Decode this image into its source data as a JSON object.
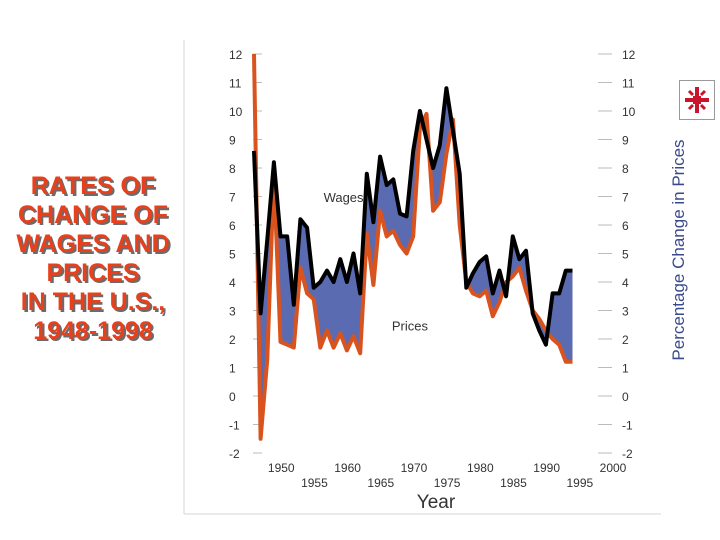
{
  "slide": {
    "title_lines": [
      "RATES OF",
      "CHANGE OF",
      "WAGES AND",
      "PRICES",
      "IN THE U.S.,",
      "1948-1998"
    ]
  },
  "chart_data": {
    "type": "line",
    "title": "RATES OF CHANGE OF WAGES AND PRICES IN THE U.S., 1948-1998",
    "xlabel": "Year",
    "ylabel_right": "Percentage Change in Prices",
    "xlim": [
      1948,
      2000
    ],
    "ylim": [
      -2,
      12
    ],
    "x_ticks_upper": [
      "1950",
      "1960",
      "1970",
      "1980",
      "1990",
      "2000"
    ],
    "x_ticks_lower": [
      "1955",
      "1965",
      "1975",
      "1985",
      "1995"
    ],
    "y_ticks_left": [
      "12",
      "11",
      "10",
      "9",
      "8",
      "7",
      "6",
      "5",
      "4",
      "3",
      "2",
      "1",
      "0",
      "-1",
      "-2"
    ],
    "y_ticks_right": [
      "12",
      "11",
      "10",
      "9",
      "8",
      "7",
      "6",
      "5",
      "4",
      "3",
      "2",
      "1",
      "0",
      "-1",
      "-2"
    ],
    "series": [
      {
        "name": "Wages",
        "color": "#000000",
        "x": [
          1948,
          1949,
          1950,
          1951,
          1952,
          1953,
          1954,
          1955,
          1956,
          1957,
          1958,
          1959,
          1960,
          1961,
          1962,
          1963,
          1964,
          1965,
          1966,
          1967,
          1968,
          1969,
          1970,
          1971,
          1972,
          1973,
          1974,
          1975,
          1976,
          1977,
          1978,
          1979,
          1980,
          1981,
          1982,
          1983,
          1984,
          1985,
          1986,
          1987,
          1988,
          1989,
          1990,
          1991,
          1992,
          1993,
          1994,
          1995,
          1996
        ],
        "values": [
          8.6,
          2.9,
          5.5,
          8.2,
          5.6,
          5.6,
          3.2,
          6.2,
          5.9,
          3.8,
          4.0,
          4.4,
          4.0,
          4.8,
          4.0,
          5.0,
          3.6,
          7.8,
          6.1,
          8.4,
          7.4,
          7.6,
          6.4,
          6.3,
          8.6,
          10.0,
          9.0,
          8.0,
          8.8,
          10.8,
          9.3,
          7.8,
          3.8,
          4.3,
          4.7,
          4.9,
          3.6,
          4.4,
          3.5,
          5.6,
          4.8,
          5.1,
          2.9,
          2.3,
          1.8,
          3.6,
          3.6,
          4.4,
          4.4
        ]
      },
      {
        "name": "Prices",
        "color": "#d9531e",
        "x": [
          1948,
          1949,
          1950,
          1951,
          1952,
          1953,
          1954,
          1955,
          1956,
          1957,
          1958,
          1959,
          1960,
          1961,
          1962,
          1963,
          1964,
          1965,
          1966,
          1967,
          1968,
          1969,
          1970,
          1971,
          1972,
          1973,
          1974,
          1975,
          1976,
          1977,
          1978,
          1979,
          1980,
          1981,
          1982,
          1983,
          1984,
          1985,
          1986,
          1987,
          1988,
          1989,
          1990,
          1991,
          1992,
          1993,
          1994,
          1995,
          1996
        ],
        "values": [
          12.0,
          -1.5,
          1.3,
          7.8,
          1.9,
          1.8,
          1.7,
          4.5,
          3.6,
          3.4,
          1.7,
          2.3,
          1.7,
          2.2,
          1.6,
          2.1,
          1.5,
          5.7,
          3.9,
          6.5,
          5.6,
          5.8,
          5.3,
          5.0,
          5.6,
          9.4,
          9.9,
          6.5,
          6.8,
          8.5,
          9.7,
          6.0,
          4.0,
          3.6,
          3.5,
          3.7,
          2.8,
          3.3,
          4.0,
          4.2,
          4.5,
          3.7,
          3.0,
          2.7,
          2.3,
          2.0,
          1.8,
          1.2,
          1.2
        ]
      }
    ],
    "annotations": [
      {
        "text": "Wages",
        "x": 1961.5,
        "y": 6.8
      },
      {
        "text": "Prices",
        "x": 1971.5,
        "y": 2.3
      }
    ]
  }
}
